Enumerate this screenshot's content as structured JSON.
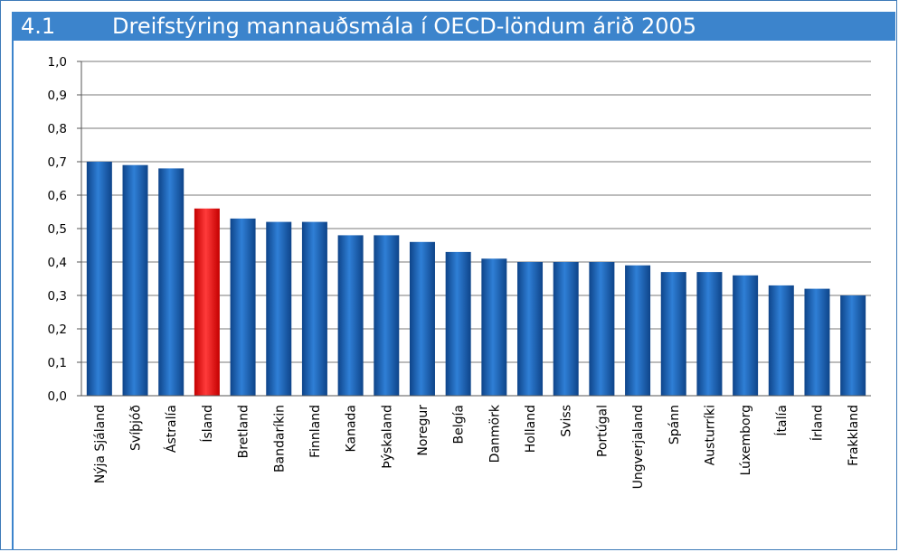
{
  "header": {
    "figure_number": "4.1",
    "title": "Dreifstýring mannauðsmála í OECD-löndum árið 2005"
  },
  "colors": {
    "header_bg": "#3c84cc",
    "bar_default": "#1f63b5",
    "bar_highlight": "#ee1b1b",
    "grid": "#7a7a7a"
  },
  "chart_data": {
    "type": "bar",
    "title": "Dreifstýring mannauðsmála í OECD-löndum árið 2005",
    "xlabel": "",
    "ylabel": "",
    "ylim": [
      0,
      1.0
    ],
    "y_ticks": [
      "0,0",
      "0,1",
      "0,2",
      "0,3",
      "0,4",
      "0,5",
      "0,6",
      "0,7",
      "0,8",
      "0,9",
      "1,0"
    ],
    "grid": true,
    "highlight_category": "Ísland",
    "categories": [
      "Nýja Sjáland",
      "Svíþjóð",
      "Ástralía",
      "Ísland",
      "Bretland",
      "Bandaríkin",
      "Finnland",
      "Kanada",
      "Þýskaland",
      "Noregur",
      "Belgía",
      "Danmörk",
      "Holland",
      "Sviss",
      "Portúgal",
      "Ungverjaland",
      "Spánn",
      "Austurríki",
      "Lúxemborg",
      "Ítalía",
      "Írland",
      "Frakkland"
    ],
    "values": [
      0.7,
      0.69,
      0.68,
      0.56,
      0.53,
      0.52,
      0.52,
      0.48,
      0.48,
      0.46,
      0.43,
      0.41,
      0.4,
      0.4,
      0.4,
      0.39,
      0.37,
      0.37,
      0.36,
      0.33,
      0.32,
      0.3
    ]
  }
}
